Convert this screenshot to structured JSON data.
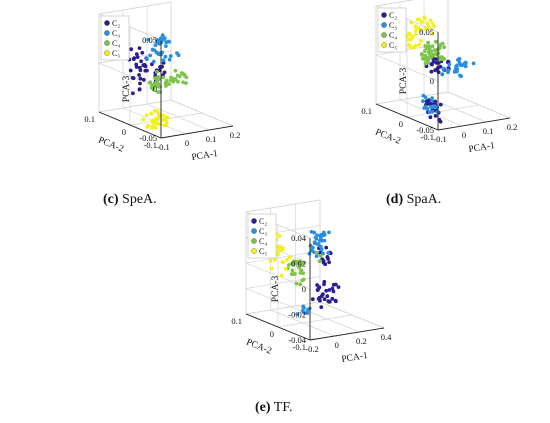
{
  "panel_layout": [
    "c",
    "d",
    "e"
  ],
  "chart_data": [
    {
      "id": "c",
      "type": "scatter",
      "caption_letter": "(c)",
      "caption_text": " SpeA.",
      "xlabel": "PCA-1",
      "ylabel": "PCA-2",
      "zlabel": "PCA-3",
      "xlim": [
        -0.1,
        0.2
      ],
      "ylim": [
        -0.1,
        0.1
      ],
      "zlim": [
        -0.05,
        0.05
      ],
      "xticks": [
        -0.1,
        0,
        0.1,
        0.2
      ],
      "xtick_labels": [
        "-0.1",
        "0",
        "0.1",
        "0.2"
      ],
      "yticks": [
        -0.1,
        0,
        0.1
      ],
      "ytick_labels": [
        "-0.1",
        "0",
        "0.1"
      ],
      "zticks": [
        -0.05,
        0,
        0.05
      ],
      "ztick_labels": [
        "-0.05",
        "0",
        "0.05"
      ],
      "grid": true,
      "legend_position": "top-left",
      "series": [
        {
          "name": "C₂",
          "color": "#2b1f8f",
          "clusters": [
            {
              "x": [
                -0.09,
                -0.03
              ],
              "y": [
                -0.02,
                0.02
              ],
              "z": [
                -0.02,
                0.03
              ],
              "n": 32
            },
            {
              "x": [
                0.0,
                0.04
              ],
              "y": [
                -0.01,
                0.01
              ],
              "z": [
                -0.01,
                0.01
              ],
              "n": 10
            }
          ]
        },
        {
          "name": "C₃",
          "color": "#2a8ee0",
          "clusters": [
            {
              "x": [
                -0.02,
                0.07
              ],
              "y": [
                -0.02,
                0.02
              ],
              "z": [
                0.01,
                0.035
              ],
              "n": 30
            },
            {
              "x": [
                0.17,
                0.19
              ],
              "y": [
                0.06,
                0.07
              ],
              "z": [
                0.0,
                0.005
              ],
              "n": 2
            }
          ]
        },
        {
          "name": "C₄",
          "color": "#7dc44a",
          "clusters": [
            {
              "x": [
                -0.04,
                0.09
              ],
              "y": [
                -0.04,
                0.0
              ],
              "z": [
                -0.015,
                0.0
              ],
              "n": 48
            }
          ]
        },
        {
          "name": "C₅",
          "color": "#f4f01c",
          "clusters": [
            {
              "x": [
                -0.08,
                -0.01
              ],
              "y": [
                -0.06,
                -0.02
              ],
              "z": [
                -0.05,
                -0.035
              ],
              "n": 36
            }
          ]
        }
      ]
    },
    {
      "id": "d",
      "type": "scatter",
      "caption_letter": "(d)",
      "caption_text": " SpaA.",
      "xlabel": "PCA-1",
      "ylabel": "PCA-2",
      "zlabel": "PCA-3",
      "xlim": [
        -0.1,
        0.2
      ],
      "ylim": [
        -0.1,
        0.1
      ],
      "zlim": [
        -0.05,
        0.05
      ],
      "xticks": [
        -0.1,
        0,
        0.1,
        0.2
      ],
      "xtick_labels": [
        "-0.1",
        "0",
        "0.1",
        "0.2"
      ],
      "yticks": [
        -0.1,
        0,
        0.1
      ],
      "ytick_labels": [
        "-0.1",
        "0",
        "0.1"
      ],
      "zticks": [
        -0.05,
        0,
        0.05
      ],
      "ztick_labels": [
        "-0.05",
        "0",
        "0.05"
      ],
      "grid": true,
      "legend_position": "top-left",
      "series": [
        {
          "name": "C₂",
          "color": "#2b1f8f",
          "clusters": [
            {
              "x": [
                -0.06,
                -0.02
              ],
              "y": [
                -0.06,
                -0.02
              ],
              "z": [
                -0.05,
                -0.03
              ],
              "n": 20
            },
            {
              "x": [
                0.0,
                0.07
              ],
              "y": [
                -0.01,
                0.02
              ],
              "z": [
                -0.01,
                0.005
              ],
              "n": 22
            }
          ]
        },
        {
          "name": "C₃",
          "color": "#2a8ee0",
          "clusters": [
            {
              "x": [
                -0.09,
                -0.04
              ],
              "y": [
                -0.06,
                -0.03
              ],
              "z": [
                -0.04,
                -0.025
              ],
              "n": 16
            },
            {
              "x": [
                0.08,
                0.18
              ],
              "y": [
                0.0,
                0.04
              ],
              "z": [
                -0.02,
                -0.005
              ],
              "n": 26
            }
          ]
        },
        {
          "name": "C₄",
          "color": "#7dc44a",
          "clusters": [
            {
              "x": [
                -0.04,
                0.05
              ],
              "y": [
                -0.01,
                0.02
              ],
              "z": [
                0.0,
                0.02
              ],
              "n": 40
            }
          ]
        },
        {
          "name": "C₅",
          "color": "#f4f01c",
          "clusters": [
            {
              "x": [
                -0.06,
                0.02
              ],
              "y": [
                0.0,
                0.04
              ],
              "z": [
                0.015,
                0.045
              ],
              "n": 36
            }
          ]
        }
      ]
    },
    {
      "id": "e",
      "type": "scatter",
      "caption_letter": "(e)",
      "caption_text": " TF.",
      "xlabel": "PCA-1",
      "ylabel": "PCA-2",
      "zlabel": "PCA-3",
      "xlim": [
        -0.2,
        0.4
      ],
      "ylim": [
        -0.1,
        0.1
      ],
      "zlim": [
        -0.04,
        0.04
      ],
      "xticks": [
        -0.2,
        0,
        0.2,
        0.4
      ],
      "xtick_labels": [
        "-0.2",
        "0",
        "0.2",
        "0.4"
      ],
      "yticks": [
        -0.1,
        0,
        0.1
      ],
      "ytick_labels": [
        "-0.1",
        "0",
        "0.1"
      ],
      "zticks": [
        -0.04,
        -0.02,
        0,
        0.02,
        0.04
      ],
      "ztick_labels": [
        "-0.04",
        "-0.02",
        "0",
        "0.02",
        "0.04"
      ],
      "grid": true,
      "legend_position": "top-left",
      "series": [
        {
          "name": "C₂",
          "color": "#2b1f8f",
          "clusters": [
            {
              "x": [
                0.1,
                0.25
              ],
              "y": [
                -0.03,
                0.02
              ],
              "z": [
                -0.03,
                -0.01
              ],
              "n": 28
            },
            {
              "x": [
                0.15,
                0.22
              ],
              "y": [
                -0.01,
                0.02
              ],
              "z": [
                0.0,
                0.015
              ],
              "n": 14
            }
          ]
        },
        {
          "name": "C₃",
          "color": "#2a8ee0",
          "clusters": [
            {
              "x": [
                0.1,
                0.22
              ],
              "y": [
                0.0,
                0.03
              ],
              "z": [
                0.01,
                0.03
              ],
              "n": 30
            },
            {
              "x": [
                -0.12,
                -0.04
              ],
              "y": [
                -0.06,
                -0.02
              ],
              "z": [
                -0.03,
                -0.02
              ],
              "n": 8
            }
          ]
        },
        {
          "name": "C₄",
          "color": "#7dc44a",
          "clusters": [
            {
              "x": [
                -0.08,
                -0.01
              ],
              "y": [
                -0.02,
                0.02
              ],
              "z": [
                -0.01,
                0.01
              ],
              "n": 24
            },
            {
              "x": [
                0.13,
                0.16
              ],
              "y": [
                0.0,
                0.01
              ],
              "z": [
                0.005,
                0.012
              ],
              "n": 4
            }
          ]
        },
        {
          "name": "C₅",
          "color": "#f4f01c",
          "clusters": [
            {
              "x": [
                -0.2,
                -0.12
              ],
              "y": [
                -0.01,
                0.03
              ],
              "z": [
                0.0,
                0.03
              ],
              "n": 26
            }
          ]
        }
      ]
    }
  ]
}
